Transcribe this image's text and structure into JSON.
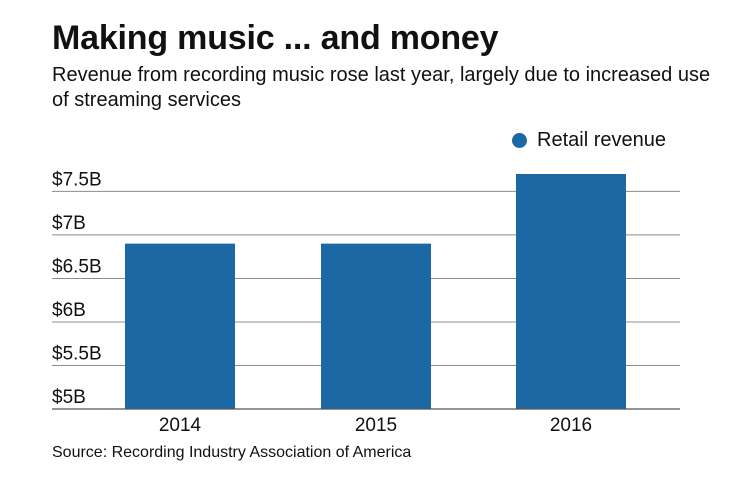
{
  "header": {
    "title": "Making music ... and money",
    "subtitle": "Revenue from recording music rose last year, largely due to increased use of streaming services"
  },
  "legend": {
    "label": "Retail revenue",
    "color": "#1b68a4"
  },
  "chart_data": {
    "type": "bar",
    "categories": [
      "2014",
      "2015",
      "2016"
    ],
    "series": [
      {
        "name": "Retail revenue",
        "values": [
          6.9,
          6.9,
          7.7
        ]
      }
    ],
    "ylim": [
      5,
      7.7
    ],
    "yticks": [
      5,
      5.5,
      6,
      6.5,
      7,
      7.5
    ],
    "ytick_labels": [
      "$5B",
      "$5.5B",
      "$6B",
      "$6.5B",
      "$7B",
      "$7.5B"
    ],
    "grid": true,
    "legend_position": "top-right"
  },
  "footer": {
    "source": "Source: Recording Industry Association of America"
  }
}
